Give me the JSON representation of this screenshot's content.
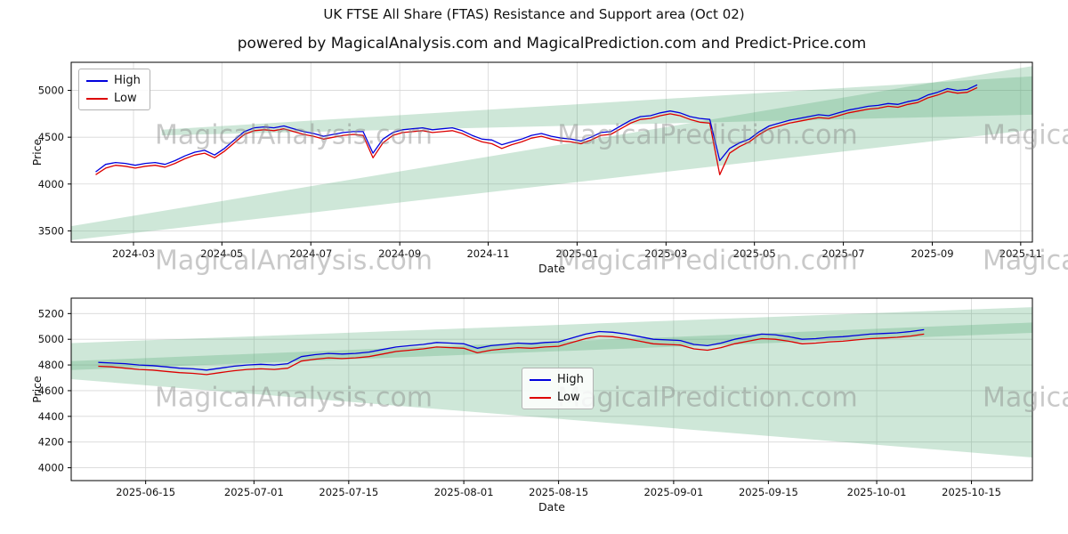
{
  "title": "UK FTSE All Share (FTAS) Resistance and Support area (Oct 02)",
  "subtitle": "powered by MagicalAnalysis.com and MagicalPrediction.com and Predict-Price.com",
  "watermarks": [
    "MagicalAnalysis.com",
    "MagicalPrediction.com"
  ],
  "legend": {
    "high": "High",
    "low": "Low"
  },
  "colors": {
    "high": "#0000dd",
    "low": "#dd0000",
    "band": "#4aa56e",
    "grid": "#d7d7d7",
    "spine": "#000000"
  },
  "chart_data": [
    {
      "type": "line",
      "title": "",
      "xlabel": "Date",
      "ylabel": "Price",
      "xlim": [
        2024.05,
        2025.855
      ],
      "ylim": [
        3380,
        5300
      ],
      "y_ticks": [
        3500,
        4000,
        4500,
        5000
      ],
      "x_tick_pos": [
        2024.167,
        2024.333,
        2024.5,
        2024.667,
        2024.833,
        2025.0,
        2025.167,
        2025.333,
        2025.5,
        2025.667,
        2025.833
      ],
      "x_tick_labels": [
        "2024-03",
        "2024-05",
        "2024-07",
        "2024-09",
        "2024-11",
        "2025-01",
        "2025-03",
        "2025-05",
        "2025-07",
        "2025-09",
        "2025-11"
      ],
      "x_start": 2024.096,
      "x_step": 0.0186,
      "series": [
        {
          "name": "High",
          "color_key": "high",
          "values": [
            4130,
            4210,
            4230,
            4220,
            4200,
            4220,
            4230,
            4210,
            4250,
            4300,
            4340,
            4360,
            4310,
            4380,
            4470,
            4560,
            4600,
            4610,
            4600,
            4620,
            4590,
            4560,
            4540,
            4510,
            4530,
            4550,
            4560,
            4560,
            4330,
            4480,
            4550,
            4580,
            4590,
            4600,
            4580,
            4590,
            4600,
            4570,
            4520,
            4480,
            4470,
            4420,
            4450,
            4480,
            4520,
            4540,
            4510,
            4490,
            4480,
            4460,
            4500,
            4550,
            4560,
            4620,
            4680,
            4720,
            4730,
            4760,
            4780,
            4760,
            4720,
            4700,
            4690,
            4250,
            4380,
            4440,
            4480,
            4560,
            4620,
            4650,
            4680,
            4700,
            4720,
            4740,
            4730,
            4760,
            4790,
            4810,
            4830,
            4840,
            4860,
            4850,
            4880,
            4900,
            4950,
            4980,
            5020,
            5000,
            5010,
            5060
          ]
        },
        {
          "name": "Low",
          "color_key": "low",
          "values": [
            4100,
            4170,
            4200,
            4190,
            4170,
            4190,
            4200,
            4180,
            4220,
            4270,
            4310,
            4330,
            4280,
            4350,
            4440,
            4530,
            4570,
            4580,
            4570,
            4590,
            4560,
            4530,
            4510,
            4480,
            4500,
            4520,
            4530,
            4520,
            4280,
            4440,
            4520,
            4550,
            4560,
            4570,
            4550,
            4560,
            4570,
            4540,
            4490,
            4450,
            4430,
            4380,
            4420,
            4450,
            4490,
            4510,
            4480,
            4460,
            4450,
            4430,
            4470,
            4520,
            4530,
            4590,
            4650,
            4690,
            4700,
            4730,
            4750,
            4730,
            4690,
            4660,
            4650,
            4100,
            4330,
            4400,
            4450,
            4530,
            4590,
            4620,
            4650,
            4670,
            4690,
            4710,
            4700,
            4730,
            4760,
            4780,
            4800,
            4810,
            4830,
            4820,
            4850,
            4870,
            4920,
            4950,
            4990,
            4970,
            4980,
            5030
          ]
        }
      ],
      "bands": [
        [
          [
            2024.05,
            3400
          ],
          [
            2024.05,
            3550
          ],
          [
            2025.855,
            5260
          ],
          [
            2025.855,
            4580
          ]
        ],
        [
          [
            2024.22,
            4520
          ],
          [
            2024.22,
            4580
          ],
          [
            2025.855,
            5150
          ],
          [
            2025.855,
            4740
          ]
        ]
      ]
    },
    {
      "type": "line",
      "title": "",
      "xlabel": "Date",
      "ylabel": "Price",
      "xlim": [
        155,
        297
      ],
      "ylim": [
        3900,
        5320
      ],
      "y_ticks": [
        4000,
        4200,
        4400,
        4600,
        4800,
        5000,
        5200
      ],
      "x_tick_pos": [
        166,
        182,
        196,
        213,
        227,
        244,
        258,
        274,
        288
      ],
      "x_tick_labels": [
        "2025-06-15",
        "2025-07-01",
        "2025-07-15",
        "2025-08-01",
        "2025-08-15",
        "2025-09-01",
        "2025-09-15",
        "2025-10-01",
        "2025-10-15"
      ],
      "x_start": 159,
      "x_step": 2,
      "series": [
        {
          "name": "High",
          "color_key": "high",
          "values": [
            4820,
            4815,
            4810,
            4800,
            4795,
            4785,
            4775,
            4770,
            4760,
            4775,
            4790,
            4800,
            4805,
            4800,
            4810,
            4865,
            4880,
            4890,
            4885,
            4890,
            4900,
            4920,
            4940,
            4950,
            4960,
            4975,
            4970,
            4965,
            4930,
            4950,
            4960,
            4970,
            4965,
            4975,
            4980,
            5010,
            5040,
            5060,
            5055,
            5040,
            5020,
            5000,
            4995,
            4990,
            4960,
            4950,
            4970,
            5000,
            5020,
            5040,
            5035,
            5020,
            5000,
            5005,
            5015,
            5020,
            5030,
            5040,
            5045,
            5050,
            5060,
            5075
          ]
        },
        {
          "name": "Low",
          "color_key": "low",
          "values": [
            4790,
            4785,
            4775,
            4765,
            4760,
            4750,
            4740,
            4735,
            4725,
            4740,
            4755,
            4765,
            4770,
            4765,
            4775,
            4830,
            4845,
            4855,
            4850,
            4855,
            4865,
            4885,
            4905,
            4915,
            4925,
            4940,
            4935,
            4930,
            4895,
            4915,
            4925,
            4935,
            4930,
            4940,
            4945,
            4975,
            5005,
            5025,
            5020,
            5005,
            4985,
            4965,
            4960,
            4955,
            4925,
            4915,
            4935,
            4965,
            4985,
            5005,
            5000,
            4985,
            4965,
            4970,
            4980,
            4985,
            4995,
            5005,
            5010,
            5015,
            5025,
            5040
          ]
        }
      ],
      "bands": [
        [
          [
            155,
            4690
          ],
          [
            155,
            4970
          ],
          [
            297,
            5250
          ],
          [
            297,
            4080
          ]
        ],
        [
          [
            155,
            4760
          ],
          [
            155,
            4830
          ],
          [
            297,
            5130
          ],
          [
            297,
            5050
          ]
        ]
      ]
    }
  ]
}
